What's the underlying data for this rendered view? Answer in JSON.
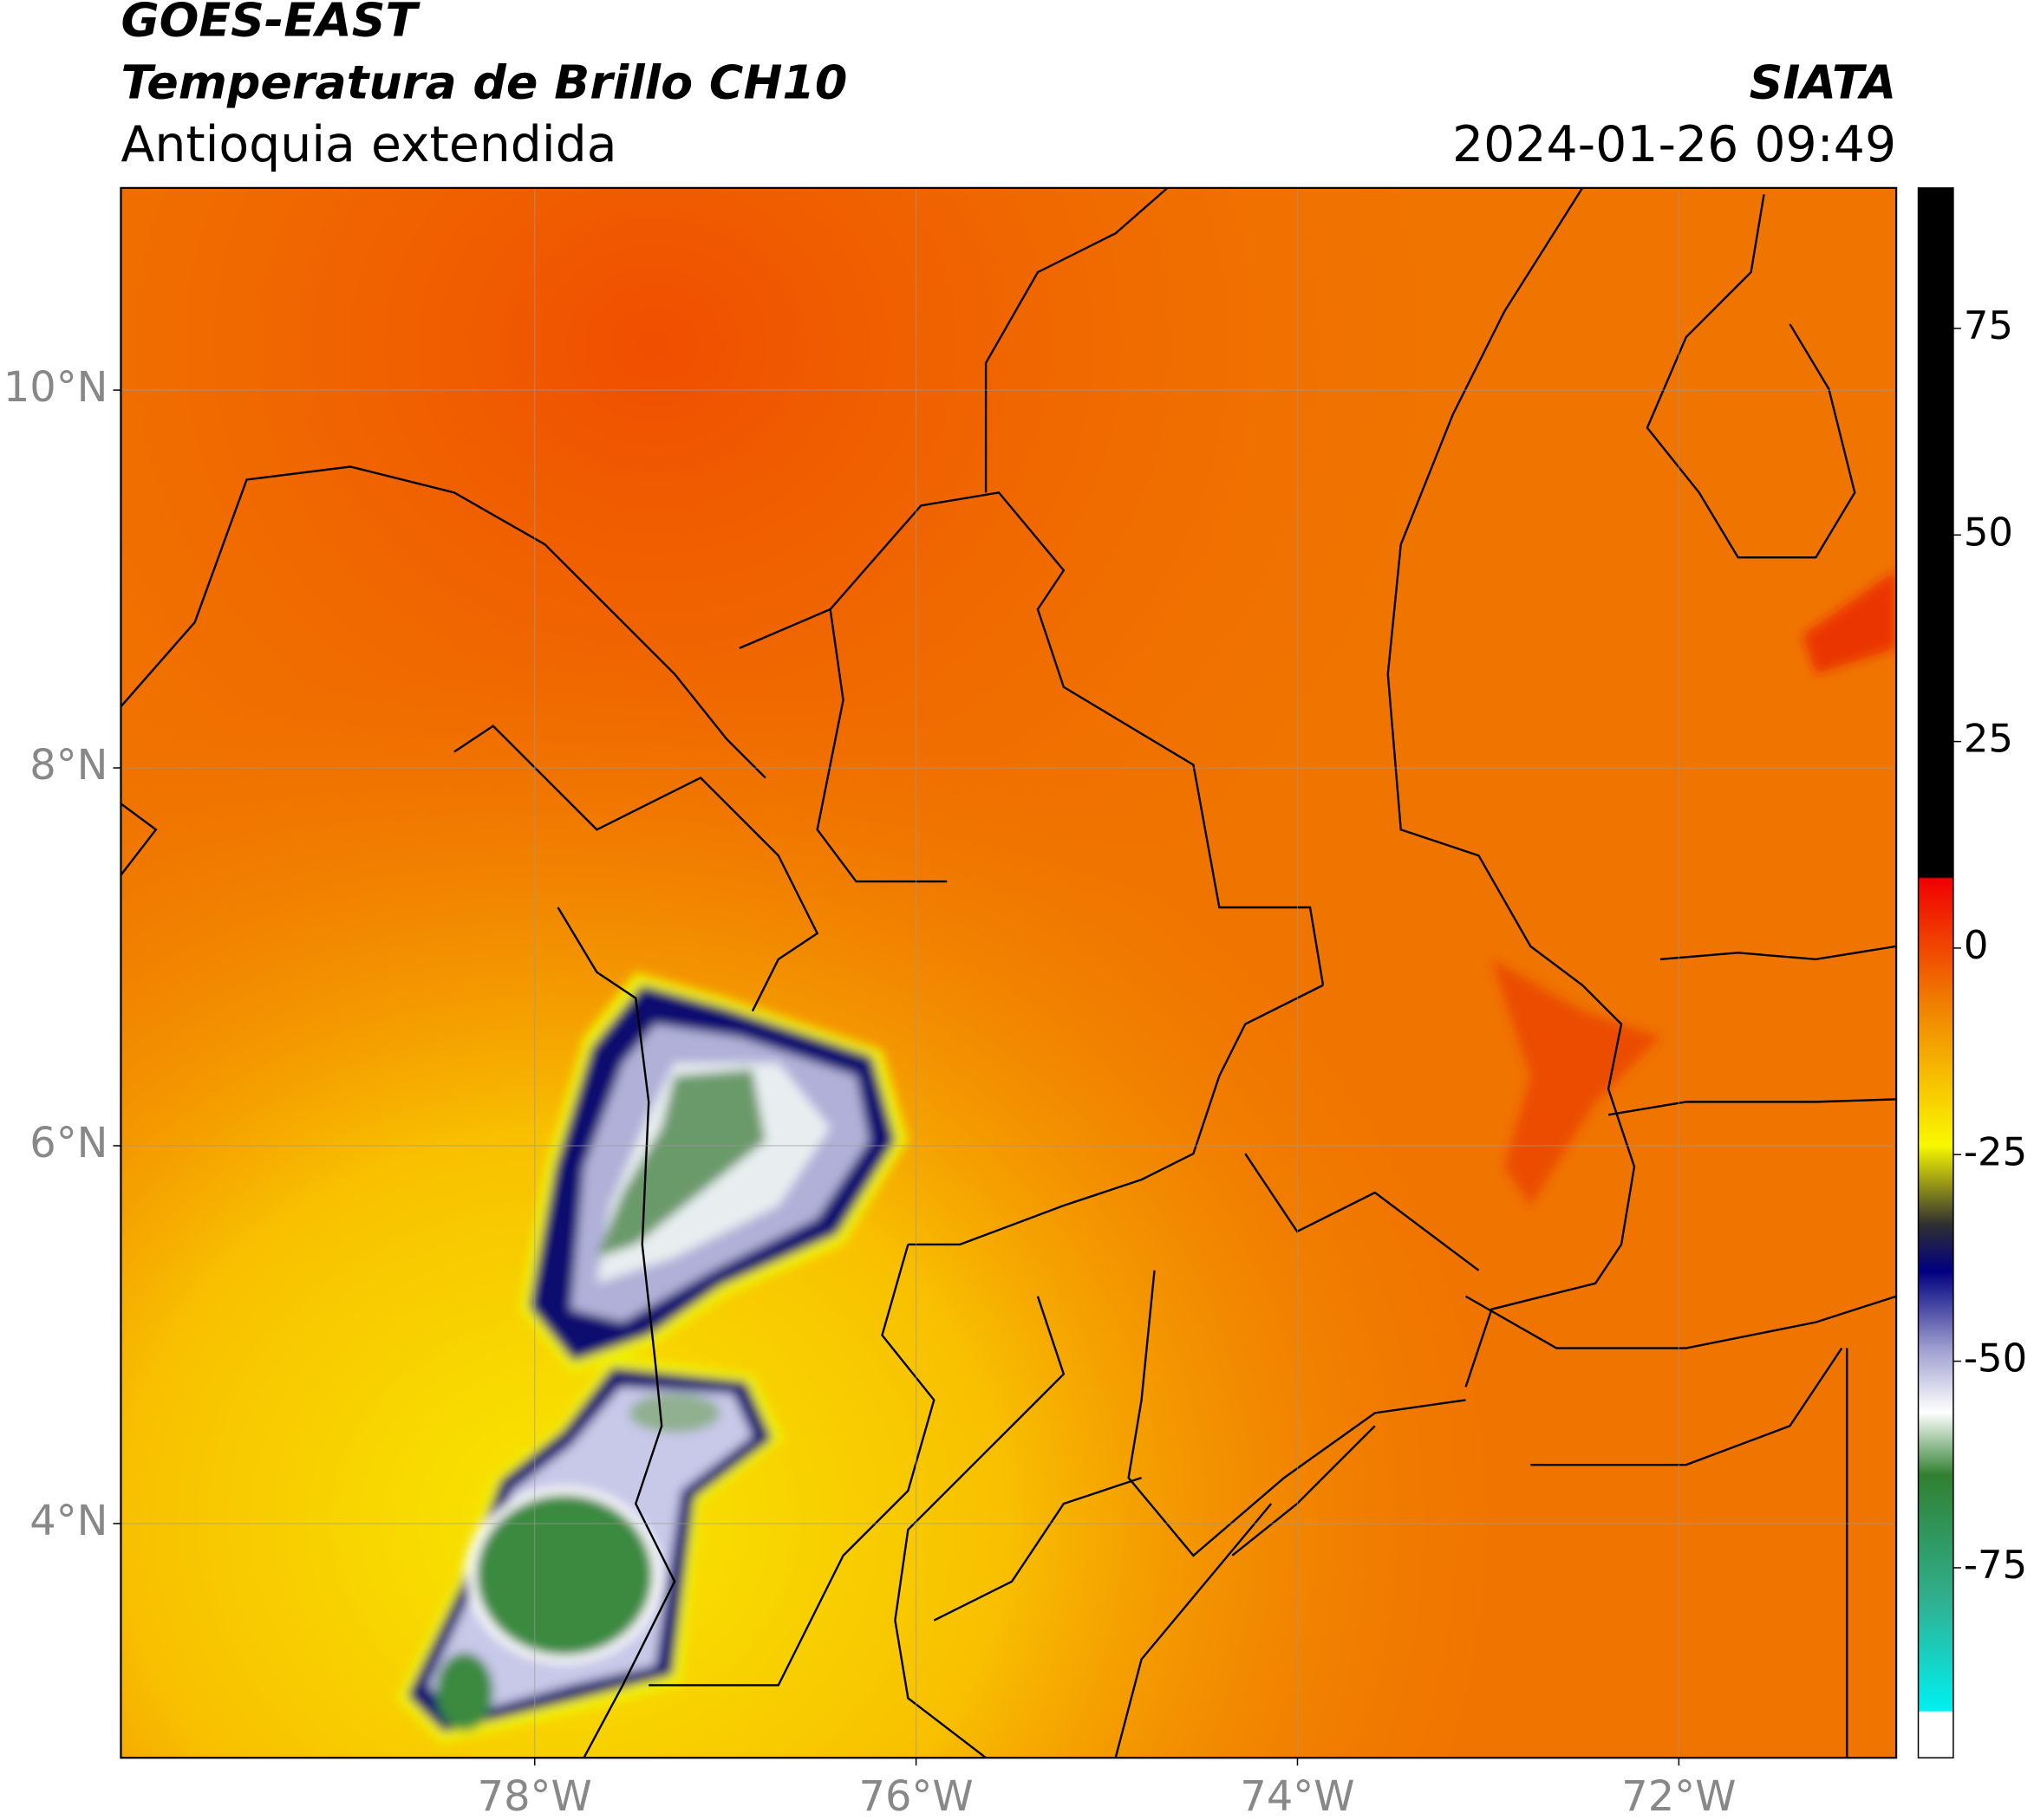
{
  "header": {
    "title": "GOES-EAST",
    "product": "Temperatura de Brillo CH10",
    "region": "Antioquia extendida",
    "source": "SIATA",
    "datetime": "2024-01-26 09:49"
  },
  "map": {
    "lon_range": [
      -80.17,
      -70.86
    ],
    "lat_range": [
      2.76,
      11.07
    ],
    "lon_ticks": [
      {
        "value": -78,
        "label": "78°W"
      },
      {
        "value": -76,
        "label": "76°W"
      },
      {
        "value": -74,
        "label": "74°W"
      },
      {
        "value": -72,
        "label": "72°W"
      }
    ],
    "lat_ticks": [
      {
        "value": 4,
        "label": "4°N"
      },
      {
        "value": 6,
        "label": "6°N"
      },
      {
        "value": 8,
        "label": "8°N"
      },
      {
        "value": 10,
        "label": "10°N"
      }
    ],
    "grid": true
  },
  "colorbar": {
    "range": [
      -98,
      92
    ],
    "ticks": [
      75,
      50,
      25,
      0,
      -25,
      -50,
      -75
    ]
  }
}
